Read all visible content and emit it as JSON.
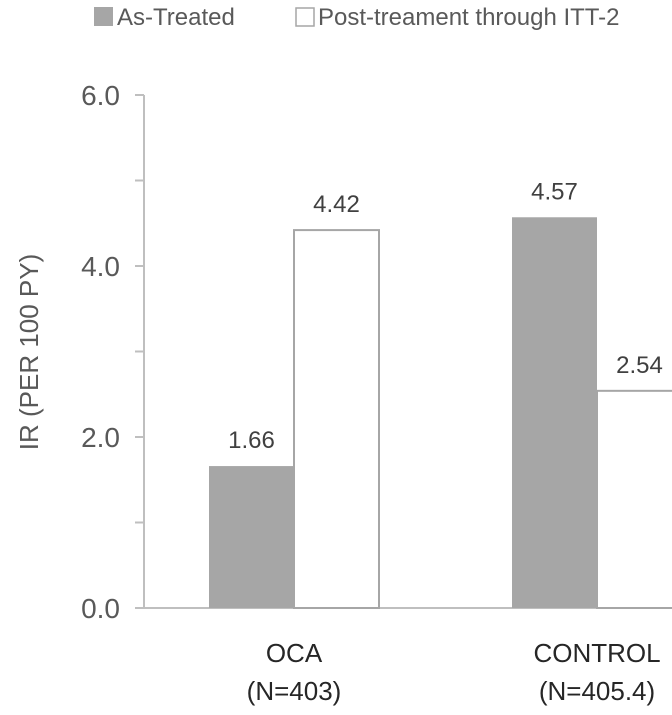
{
  "chart_data": {
    "type": "bar",
    "categories": [
      "OCA",
      "CONTROL"
    ],
    "category_sublabels": [
      "(N=403)",
      "(N=405.4)"
    ],
    "series": [
      {
        "name": "As-Treated",
        "values": [
          1.66,
          4.57
        ],
        "color": "#a6a6a6",
        "value_labels": [
          "1.66",
          "4.57"
        ]
      },
      {
        "name": "Post-treament through ITT-2",
        "values": [
          4.42,
          2.54
        ],
        "color": "#ffffff",
        "value_labels": [
          "4.42",
          "2.54"
        ]
      }
    ],
    "ylabel": "IR (PER 100 PY)",
    "ylim": [
      0,
      6
    ],
    "yticks": [
      0,
      2,
      4,
      6
    ],
    "ytick_labels": [
      "0.0",
      "2.0",
      "4.0",
      "6.0"
    ],
    "legend_position": "top",
    "grid": false,
    "colors": {
      "axis": "#bfbfbf",
      "bar_outline": "#a6a6a6"
    }
  }
}
